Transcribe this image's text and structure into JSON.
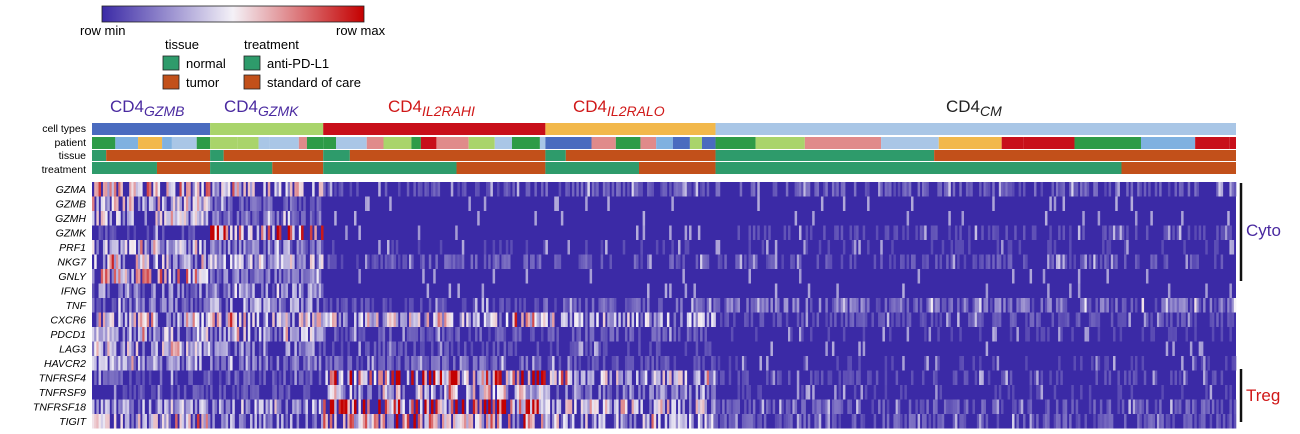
{
  "colors": {
    "low": "#3b2aa6",
    "mid": "#f4f1f7",
    "high": "#c40000",
    "purple_label": "#4a2aa0",
    "red_label": "#d01818",
    "dark_label": "#222222"
  },
  "colorbar": {
    "min_label": "row min",
    "max_label": "row max"
  },
  "legend": {
    "tissue_title": "tissue",
    "tissue_items": [
      {
        "label": "normal",
        "color": "#2e9b6b"
      },
      {
        "label": "tumor",
        "color": "#c2501a"
      }
    ],
    "treatment_title": "treatment",
    "treatment_items": [
      {
        "label": "anti-PD-L1",
        "color": "#2e9b6b"
      },
      {
        "label": "standard of care",
        "color": "#c2501a"
      }
    ]
  },
  "chart_data": {
    "type": "heatmap",
    "cell_types": [
      {
        "base": "CD4",
        "sub": "GZMB",
        "color": "#4a6bbf",
        "label_color": "#4a2aa0",
        "cells": 118
      },
      {
        "base": "CD4",
        "sub": "GZMK",
        "color": "#a9d46b",
        "label_color": "#4a2aa0",
        "cells": 113
      },
      {
        "base": "CD4",
        "sub": "IL2RAHI",
        "color": "#c80f1a",
        "label_color": "#d01818",
        "cells": 222
      },
      {
        "base": "CD4",
        "sub": "IL2RALO",
        "color": "#f2b84b",
        "label_color": "#d01818",
        "cells": 170
      },
      {
        "base": "CD4",
        "sub": "CM",
        "color": "#a9c6e6",
        "label_color": "#222222",
        "cells": 520
      }
    ],
    "annotation_rows": [
      "cell types",
      "patient",
      "tissue",
      "treatment"
    ],
    "genes": [
      "GZMA",
      "GZMB",
      "GZMH",
      "GZMK",
      "PRF1",
      "NKG7",
      "GNLY",
      "IFNG",
      "TNF",
      "CXCR6",
      "PDCD1",
      "LAG3",
      "HAVCR2",
      "TNFRSF4",
      "TNFRSF9",
      "TNFRSF18",
      "TIGIT"
    ],
    "expression_level": [
      [
        0.55,
        0.45,
        0.1,
        0.12,
        0.12
      ],
      [
        0.45,
        0.15,
        0.05,
        0.05,
        0.05
      ],
      [
        0.4,
        0.18,
        0.05,
        0.05,
        0.05
      ],
      [
        0.1,
        0.8,
        0.05,
        0.05,
        0.08
      ],
      [
        0.35,
        0.22,
        0.06,
        0.06,
        0.06
      ],
      [
        0.45,
        0.35,
        0.12,
        0.12,
        0.1
      ],
      [
        0.55,
        0.2,
        0.05,
        0.05,
        0.05
      ],
      [
        0.25,
        0.25,
        0.05,
        0.05,
        0.05
      ],
      [
        0.2,
        0.3,
        0.1,
        0.15,
        0.18
      ],
      [
        0.5,
        0.45,
        0.45,
        0.35,
        0.1
      ],
      [
        0.35,
        0.3,
        0.12,
        0.12,
        0.06
      ],
      [
        0.45,
        0.25,
        0.1,
        0.08,
        0.05
      ],
      [
        0.3,
        0.2,
        0.15,
        0.1,
        0.06
      ],
      [
        0.12,
        0.12,
        0.7,
        0.4,
        0.08
      ],
      [
        0.1,
        0.1,
        0.45,
        0.25,
        0.06
      ],
      [
        0.3,
        0.3,
        0.75,
        0.45,
        0.12
      ],
      [
        0.4,
        0.25,
        0.55,
        0.35,
        0.12
      ]
    ],
    "brackets": [
      {
        "label": "Cyto",
        "from": "GZMA",
        "to": "GNLY",
        "color": "#4a2aa0"
      },
      {
        "label": "Treg",
        "from": "TNFRSF4",
        "to": "TIGIT",
        "color": "#d01818"
      }
    ]
  }
}
